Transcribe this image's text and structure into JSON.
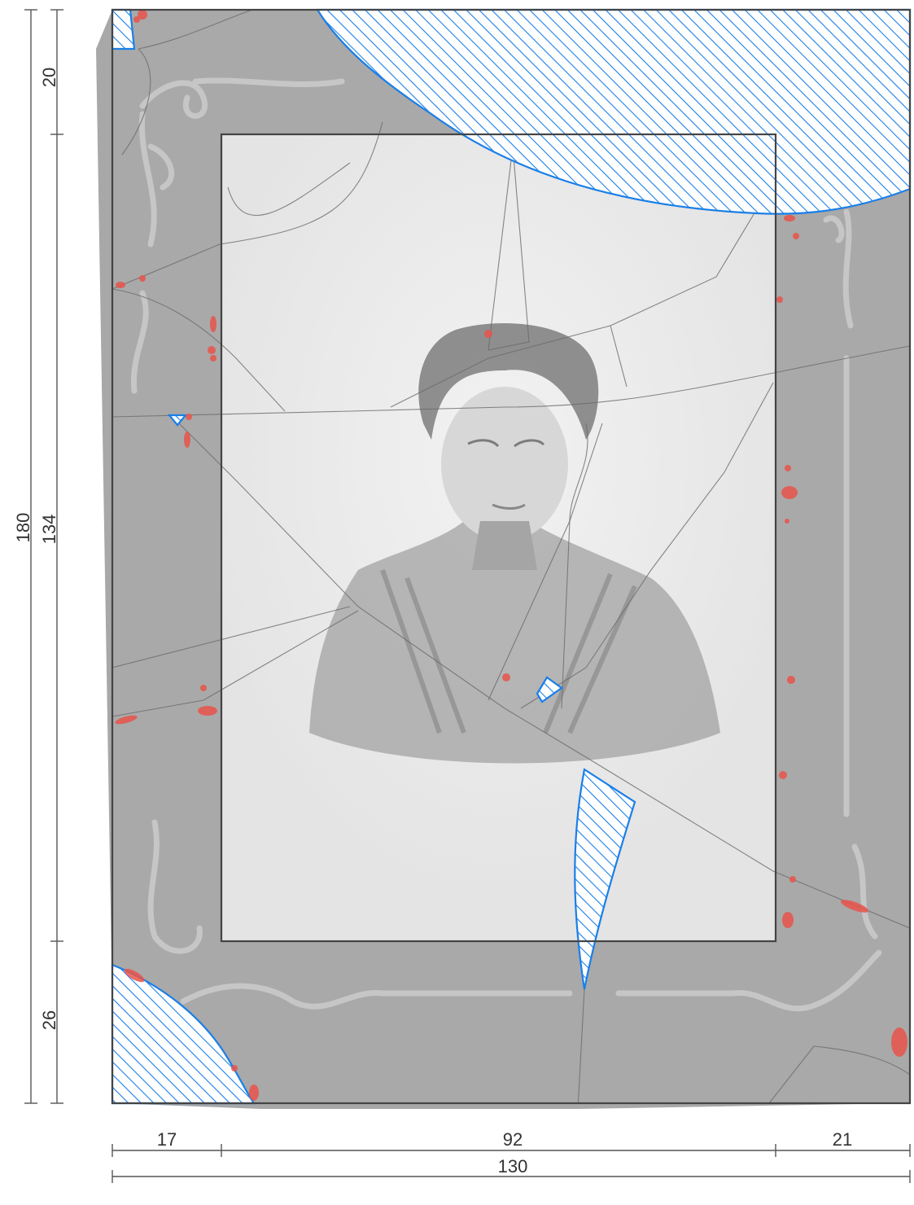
{
  "dimensions": {
    "height_total": "180",
    "height_inner": "134",
    "top_margin": "20",
    "bottom_margin": "26",
    "left_margin": "17",
    "inner_width": "92",
    "right_margin": "21",
    "width_total": "130"
  },
  "colors": {
    "frame_mount": "#a9a9a9",
    "photo_area": "#ececec",
    "outline": "#444444",
    "missing_hatch": "#1a7fe8",
    "damage_spots": "#e8534a"
  },
  "legend_semantics": {
    "hatched_blue": "missing-fragment-icon",
    "red_spots": "damage-spot-icon"
  }
}
